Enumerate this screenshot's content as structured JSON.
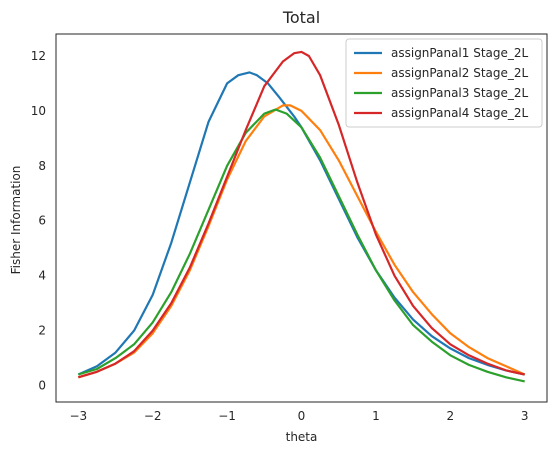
{
  "chart_data": {
    "type": "line",
    "title": "Total",
    "xlabel": "theta",
    "ylabel": "Fisher Information",
    "xlim": [
      -3.3,
      3.3
    ],
    "ylim": [
      -0.6,
      12.8
    ],
    "xticks": [
      -3,
      -2,
      -1,
      0,
      1,
      2,
      3
    ],
    "yticks": [
      0,
      2,
      4,
      6,
      8,
      10,
      12
    ],
    "grid": false,
    "legend": "top-right",
    "series": [
      {
        "name": "assignPanal1 Stage_2L",
        "color": "#1f77b4",
        "x": [
          -3.0,
          -2.75,
          -2.5,
          -2.25,
          -2.0,
          -1.75,
          -1.5,
          -1.25,
          -1.0,
          -0.85,
          -0.7,
          -0.6,
          -0.45,
          -0.3,
          -0.1,
          0.0,
          0.25,
          0.5,
          0.75,
          1.0,
          1.25,
          1.5,
          1.75,
          2.0,
          2.25,
          2.5,
          2.75,
          3.0
        ],
        "values": [
          0.4,
          0.7,
          1.2,
          2.0,
          3.3,
          5.2,
          7.4,
          9.6,
          11.0,
          11.3,
          11.4,
          11.3,
          11.0,
          10.5,
          9.8,
          9.4,
          8.2,
          6.8,
          5.4,
          4.2,
          3.2,
          2.4,
          1.8,
          1.35,
          1.0,
          0.75,
          0.55,
          0.4
        ]
      },
      {
        "name": "assignPanal2 Stage_2L",
        "color": "#ff7f0e",
        "x": [
          -3.0,
          -2.75,
          -2.5,
          -2.25,
          -2.0,
          -1.75,
          -1.5,
          -1.25,
          -1.0,
          -0.75,
          -0.5,
          -0.25,
          -0.15,
          0.0,
          0.25,
          0.5,
          0.75,
          1.0,
          1.25,
          1.5,
          1.75,
          2.0,
          2.25,
          2.5,
          2.75,
          3.0
        ],
        "values": [
          0.3,
          0.5,
          0.8,
          1.2,
          1.9,
          2.9,
          4.2,
          5.8,
          7.5,
          8.9,
          9.8,
          10.2,
          10.2,
          10.0,
          9.3,
          8.2,
          6.9,
          5.6,
          4.4,
          3.4,
          2.6,
          1.9,
          1.4,
          1.0,
          0.7,
          0.4
        ]
      },
      {
        "name": "assignPanal3 Stage_2L",
        "color": "#2ca02c",
        "x": [
          -3.0,
          -2.75,
          -2.5,
          -2.25,
          -2.0,
          -1.75,
          -1.5,
          -1.25,
          -1.0,
          -0.75,
          -0.5,
          -0.35,
          -0.2,
          0.0,
          0.25,
          0.5,
          0.75,
          1.0,
          1.25,
          1.5,
          1.75,
          2.0,
          2.25,
          2.5,
          2.75,
          3.0
        ],
        "values": [
          0.4,
          0.6,
          1.0,
          1.5,
          2.3,
          3.4,
          4.8,
          6.4,
          8.0,
          9.2,
          9.9,
          10.05,
          9.9,
          9.4,
          8.3,
          6.9,
          5.5,
          4.2,
          3.1,
          2.2,
          1.6,
          1.1,
          0.75,
          0.5,
          0.3,
          0.15
        ]
      },
      {
        "name": "assignPanal4 Stage_2L",
        "color": "#d62728",
        "x": [
          -3.0,
          -2.75,
          -2.5,
          -2.25,
          -2.0,
          -1.75,
          -1.5,
          -1.25,
          -1.0,
          -0.75,
          -0.5,
          -0.25,
          -0.1,
          0.0,
          0.1,
          0.25,
          0.5,
          0.75,
          1.0,
          1.25,
          1.5,
          1.75,
          2.0,
          2.25,
          2.5,
          2.75,
          3.0
        ],
        "values": [
          0.3,
          0.5,
          0.8,
          1.25,
          2.0,
          3.0,
          4.3,
          5.9,
          7.6,
          9.3,
          10.9,
          11.8,
          12.1,
          12.15,
          12.0,
          11.3,
          9.5,
          7.4,
          5.5,
          4.0,
          2.9,
          2.1,
          1.5,
          1.1,
          0.8,
          0.55,
          0.4
        ]
      }
    ]
  }
}
